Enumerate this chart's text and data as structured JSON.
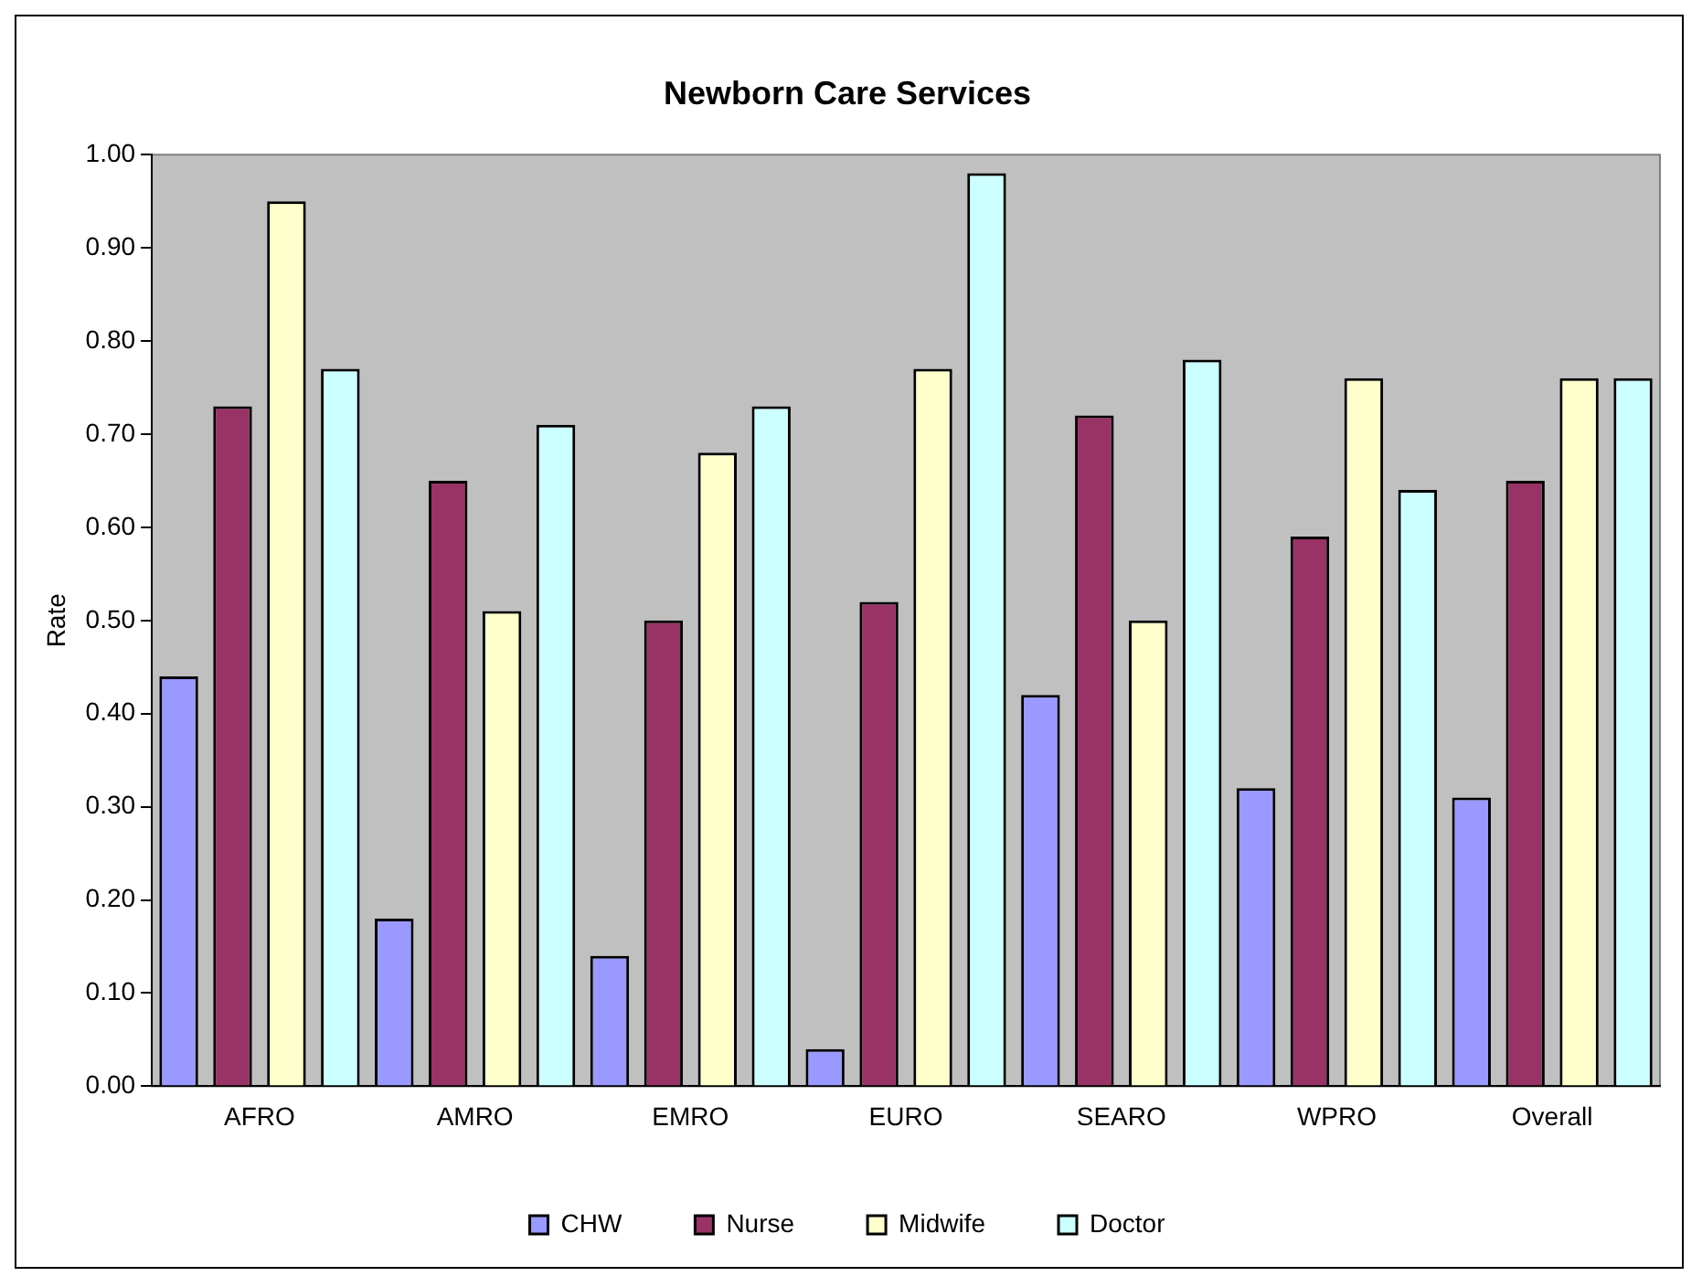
{
  "chart_data": {
    "type": "bar",
    "title": "Newborn Care Services",
    "ylabel": "Rate",
    "categories": [
      "AFRO",
      "AMRO",
      "EMRO",
      "EURO",
      "SEARO",
      "WPRO",
      "Overall"
    ],
    "series": [
      {
        "name": "CHW",
        "color": "#9999ff",
        "values": [
          0.44,
          0.18,
          0.14,
          0.04,
          0.42,
          0.32,
          0.31
        ]
      },
      {
        "name": "Nurse",
        "color": "#993366",
        "values": [
          0.73,
          0.65,
          0.5,
          0.52,
          0.72,
          0.59,
          0.65
        ]
      },
      {
        "name": "Midwife",
        "color": "#ffffcc",
        "values": [
          0.95,
          0.51,
          0.68,
          0.77,
          0.5,
          0.76,
          0.76
        ]
      },
      {
        "name": "Doctor",
        "color": "#ccffff",
        "values": [
          0.77,
          0.71,
          0.73,
          0.98,
          0.78,
          0.64,
          0.76
        ]
      }
    ],
    "ylim": [
      0,
      1
    ],
    "yticks": [
      {
        "value": 0,
        "label": "0.00"
      },
      {
        "value": 0.1,
        "label": "0.10"
      },
      {
        "value": 0.2,
        "label": "0.20"
      },
      {
        "value": 0.3,
        "label": "0.30"
      },
      {
        "value": 0.4,
        "label": "0.40"
      },
      {
        "value": 0.5,
        "label": "0.50"
      },
      {
        "value": 0.6,
        "label": "0.60"
      },
      {
        "value": 0.7,
        "label": "0.70"
      },
      {
        "value": 0.8,
        "label": "0.80"
      },
      {
        "value": 0.9,
        "label": "0.90"
      },
      {
        "value": 1,
        "label": "1.00"
      }
    ],
    "grid": false,
    "legend": "bottom"
  }
}
